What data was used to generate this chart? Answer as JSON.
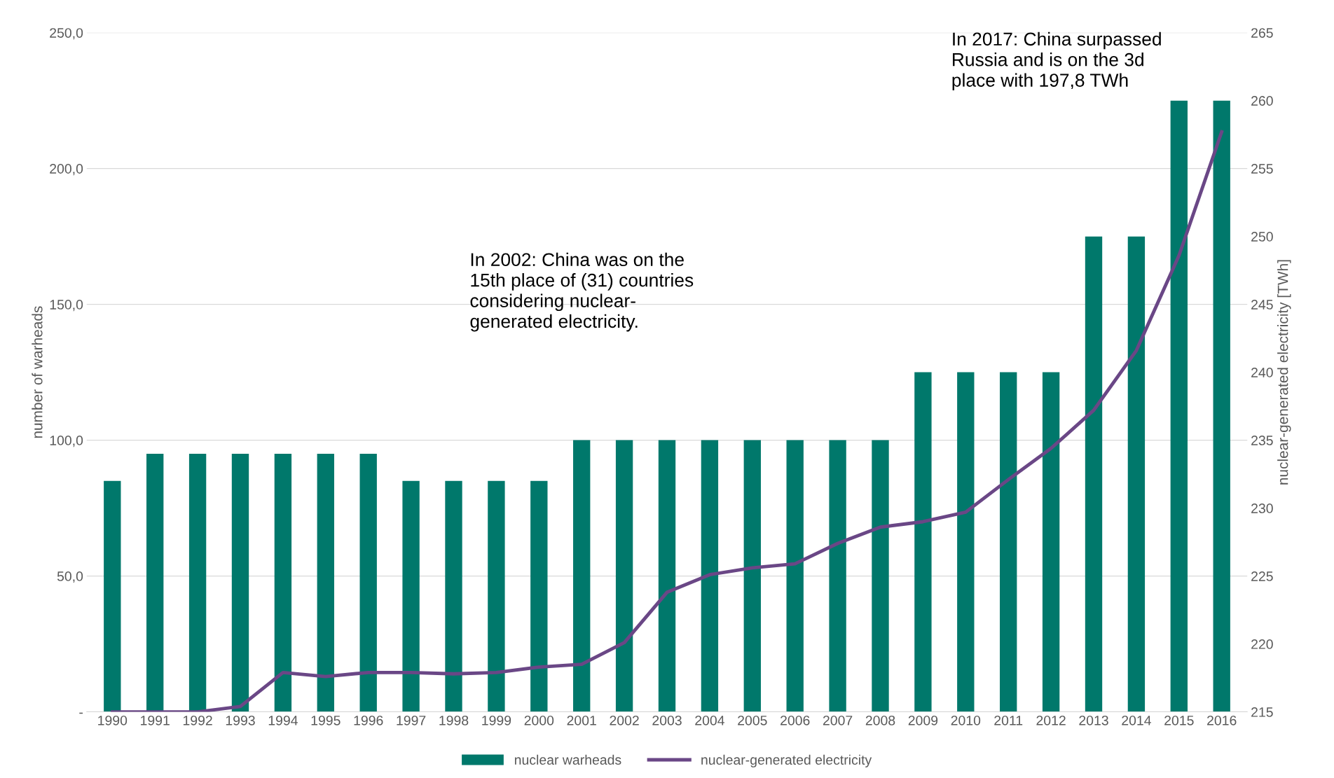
{
  "chart_data": {
    "type": "bar",
    "categories": [
      "1990",
      "1991",
      "1992",
      "1993",
      "1994",
      "1995",
      "1996",
      "1997",
      "1998",
      "1999",
      "2000",
      "2001",
      "2002",
      "2003",
      "2004",
      "2005",
      "2006",
      "2007",
      "2008",
      "2009",
      "2010",
      "2011",
      "2012",
      "2013",
      "2014",
      "2015",
      "2016"
    ],
    "series": [
      {
        "name": "nuclear warheads",
        "color": "#00786b",
        "values": [
          85,
          95,
          95,
          95,
          95,
          95,
          95,
          85,
          85,
          85,
          85,
          100,
          100,
          100,
          100,
          100,
          100,
          100,
          100,
          125,
          125,
          125,
          125,
          175,
          175,
          225,
          225
        ]
      },
      {
        "name": "nuclear-generated electricity",
        "type": "line",
        "axis": "y2",
        "color": "#6a4786",
        "values": [
          215.0,
          215.0,
          215.0,
          215.4,
          217.9,
          217.6,
          217.9,
          217.9,
          217.8,
          217.9,
          218.3,
          218.5,
          220.1,
          223.8,
          225.1,
          225.6,
          225.9,
          227.4,
          228.6,
          229.0,
          229.7,
          232.1,
          234.4,
          237.2,
          241.6,
          248.6,
          257.7
        ]
      }
    ],
    "ylabel": "number of warheads",
    "y2label": "nuclear-generated electricity [TWh]",
    "ylim": [
      0,
      250
    ],
    "yticks": [
      {
        "value": 0,
        "label": "-"
      },
      {
        "value": 50,
        "label": "50,0"
      },
      {
        "value": 100,
        "label": "100,0"
      },
      {
        "value": 150,
        "label": "150,0"
      },
      {
        "value": 200,
        "label": "200,0"
      },
      {
        "value": 250,
        "label": "250,0"
      }
    ],
    "y2lim": [
      215,
      265
    ],
    "y2ticks": [
      215,
      220,
      225,
      230,
      235,
      240,
      245,
      250,
      255,
      260,
      265
    ],
    "grid": "y",
    "legend": "bottom",
    "marker": "none",
    "line_style": "solid",
    "annotations": [
      "In 2002: China was on the\n15th place of (31) countries\nconsidering nuclear-\ngenerated electricity.",
      "In 2017: China surpassed\nRussia and is on the 3d\nplace with 197,8 TWh"
    ]
  }
}
